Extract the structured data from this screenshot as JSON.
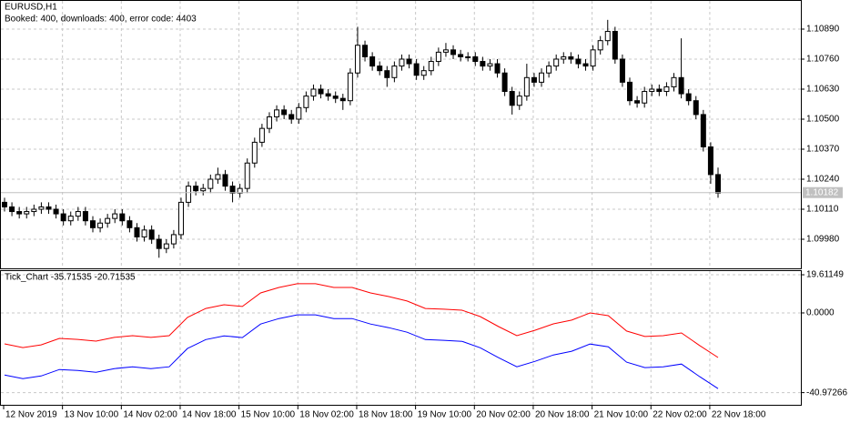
{
  "chart_data": [
    {
      "type": "candlestick",
      "title": "EURUSD,H1",
      "subtitle": "Booked: 400, downloads: 400, error code: 4403",
      "categories": [
        "12 Nov 2019",
        null,
        null,
        null,
        null,
        null,
        null,
        null,
        "13 Nov 10:00",
        null,
        null,
        null,
        null,
        null,
        null,
        null,
        "14 Nov 02:00",
        null,
        null,
        null,
        null,
        null,
        null,
        null,
        "14 Nov 18:00",
        null,
        null,
        null,
        null,
        null,
        null,
        null,
        "15 Nov 10:00",
        null,
        null,
        null,
        null,
        null,
        null,
        null,
        "18 Nov 02:00",
        null,
        null,
        null,
        null,
        null,
        null,
        null,
        "18 Nov 18:00",
        null,
        null,
        null,
        null,
        null,
        null,
        null,
        "19 Nov 10:00",
        null,
        null,
        null,
        null,
        null,
        null,
        null,
        "20 Nov 02:00",
        null,
        null,
        null,
        null,
        null,
        null,
        null,
        "20 Nov 18:00",
        null,
        null,
        null,
        null,
        null,
        null,
        null,
        "21 Nov 10:00",
        null,
        null,
        null,
        null,
        null,
        null,
        null,
        "22 Nov 02:00",
        null,
        null,
        null,
        null,
        null,
        null,
        null,
        "22 Nov 18:00",
        null
      ],
      "open": [
        1.1014,
        1.1012,
        1.101,
        1.1009,
        1.101,
        1.1011,
        1.1012,
        1.1011,
        1.1009,
        1.1006,
        1.1008,
        1.101,
        1.1006,
        1.1003,
        1.1005,
        1.1007,
        1.1009,
        1.1006,
        1.1003,
        1.0999,
        1.1002,
        1.0998,
        1.0994,
        1.0996,
        1.1,
        1.1014,
        1.1021,
        1.1019,
        1.102,
        1.1024,
        1.1026,
        1.1021,
        1.1018,
        1.102,
        1.1031,
        1.104,
        1.1046,
        1.1051,
        1.1054,
        1.1052,
        1.105,
        1.1055,
        1.106,
        1.1063,
        1.1061,
        1.106,
        1.1059,
        1.1058,
        1.107,
        1.1082,
        1.1077,
        1.1073,
        1.1071,
        1.1068,
        1.1073,
        1.1076,
        1.1074,
        1.1069,
        1.1071,
        1.1075,
        1.1079,
        1.108,
        1.1078,
        1.1077,
        1.1077,
        1.1075,
        1.1073,
        1.1074,
        1.107,
        1.1062,
        1.1056,
        1.106,
        1.1068,
        1.1066,
        1.107,
        1.1073,
        1.1076,
        1.1077,
        1.1076,
        1.1074,
        1.1073,
        1.108,
        1.1084,
        1.1088,
        1.1076,
        1.1066,
        1.1058,
        1.1057,
        1.1062,
        1.1063,
        1.1062,
        1.1064,
        1.1068,
        1.1061,
        1.1058,
        1.1052,
        1.1038,
        1.1026
      ],
      "high": [
        1.1016,
        1.1014,
        1.1012,
        1.1012,
        1.1013,
        1.1014,
        1.1014,
        1.1013,
        1.1011,
        1.101,
        1.1012,
        1.1012,
        1.1008,
        1.1007,
        1.1009,
        1.1011,
        1.1011,
        1.1008,
        1.1005,
        1.1004,
        1.1004,
        1.1,
        1.0998,
        1.1002,
        1.1016,
        1.1023,
        1.1023,
        1.1022,
        1.1026,
        1.1029,
        1.1028,
        1.1023,
        1.1022,
        1.1033,
        1.1042,
        1.1048,
        1.1053,
        1.1056,
        1.1056,
        1.1054,
        1.1057,
        1.1062,
        1.1065,
        1.1065,
        1.1063,
        1.1062,
        1.1061,
        1.1072,
        1.109,
        1.1084,
        1.1079,
        1.1075,
        1.1073,
        1.1075,
        1.1078,
        1.1078,
        1.1076,
        1.1073,
        1.1077,
        1.1081,
        1.1083,
        1.1082,
        1.108,
        1.1079,
        1.1079,
        1.1077,
        1.1076,
        1.1076,
        1.1072,
        1.1064,
        1.1062,
        1.1074,
        1.107,
        1.1072,
        1.1075,
        1.1078,
        1.1079,
        1.1079,
        1.1078,
        1.1076,
        1.1082,
        1.1086,
        1.1093,
        1.109,
        1.1078,
        1.1068,
        1.106,
        1.1064,
        1.1065,
        1.1065,
        1.1066,
        1.107,
        1.1085,
        1.1063,
        1.106,
        1.1054,
        1.104,
        1.1029
      ],
      "low": [
        1.101,
        1.1008,
        1.1007,
        1.1007,
        1.1008,
        1.1009,
        1.1009,
        1.1007,
        1.1004,
        1.1004,
        1.1006,
        1.1004,
        1.1001,
        1.1001,
        1.1003,
        1.1005,
        1.1004,
        1.1001,
        1.0997,
        1.0997,
        1.0996,
        1.099,
        1.0992,
        1.0994,
        1.0998,
        1.1012,
        1.1017,
        1.1017,
        1.1018,
        1.1022,
        1.1019,
        1.1014,
        1.1016,
        1.1018,
        1.1029,
        1.1038,
        1.1044,
        1.1049,
        1.105,
        1.1048,
        1.1048,
        1.1053,
        1.1058,
        1.1059,
        1.1058,
        1.1057,
        1.1054,
        1.1056,
        1.1068,
        1.1075,
        1.1071,
        1.1069,
        1.1064,
        1.1066,
        1.1071,
        1.1072,
        1.1067,
        1.1067,
        1.1069,
        1.1073,
        1.1077,
        1.1076,
        1.1075,
        1.1075,
        1.1073,
        1.1071,
        1.1071,
        1.1068,
        1.106,
        1.1052,
        1.1054,
        1.1058,
        1.1064,
        1.1064,
        1.1068,
        1.1071,
        1.1074,
        1.1074,
        1.1072,
        1.1071,
        1.1071,
        1.1078,
        1.1082,
        1.1074,
        1.1064,
        1.1056,
        1.1055,
        1.1055,
        1.106,
        1.106,
        1.106,
        1.1062,
        1.1059,
        1.1056,
        1.105,
        1.1036,
        1.1022,
        1.1016
      ],
      "close": [
        1.1012,
        1.101,
        1.1009,
        1.101,
        1.1011,
        1.1012,
        1.1011,
        1.1009,
        1.1006,
        1.1008,
        1.101,
        1.1006,
        1.1003,
        1.1005,
        1.1007,
        1.1009,
        1.1006,
        1.1003,
        1.0999,
        1.1002,
        1.0998,
        1.0994,
        1.0996,
        1.1,
        1.1014,
        1.1021,
        1.1019,
        1.102,
        1.1024,
        1.1026,
        1.1021,
        1.1018,
        1.102,
        1.1031,
        1.104,
        1.1046,
        1.1051,
        1.1054,
        1.1052,
        1.105,
        1.1055,
        1.106,
        1.1063,
        1.1061,
        1.106,
        1.1059,
        1.1058,
        1.107,
        1.1082,
        1.1077,
        1.1073,
        1.1071,
        1.1068,
        1.1073,
        1.1076,
        1.1074,
        1.1069,
        1.1071,
        1.1075,
        1.1079,
        1.108,
        1.1078,
        1.1077,
        1.1077,
        1.1075,
        1.1073,
        1.1074,
        1.107,
        1.1062,
        1.1056,
        1.106,
        1.1068,
        1.1066,
        1.107,
        1.1073,
        1.1076,
        1.1077,
        1.1076,
        1.1074,
        1.1073,
        1.108,
        1.1084,
        1.1088,
        1.1076,
        1.1066,
        1.1058,
        1.1057,
        1.1062,
        1.1063,
        1.1062,
        1.1064,
        1.1068,
        1.1061,
        1.1058,
        1.1052,
        1.1038,
        1.1026,
        1.1018
      ],
      "current_price": 1.10182,
      "ylim": [
        1.09854,
        1.11016
      ],
      "yticks": [
        {
          "value": 1.1089,
          "label": "1.10890"
        },
        {
          "value": 1.1076,
          "label": "1.10760"
        },
        {
          "value": 1.1063,
          "label": "1.10630"
        },
        {
          "value": 1.105,
          "label": "1.10500"
        },
        {
          "value": 1.1037,
          "label": "1.10370"
        },
        {
          "value": 1.1024,
          "label": "1.10240"
        },
        {
          "value": 1.1011,
          "label": "1.10110"
        },
        {
          "value": 1.0998,
          "label": "1.09980"
        }
      ],
      "grid": true
    },
    {
      "type": "line",
      "title": "Tick_Chart -35.71535 -20.71535",
      "series": [
        {
          "color": "#ff0000",
          "values": [
            -15.9,
            -17.8,
            -16.4,
            -13.1,
            -13.6,
            -14.5,
            -12.6,
            -11.7,
            -12.6,
            -11.7,
            -2.3,
            2.3,
            4.2,
            3.3,
            10.3,
            13.1,
            15,
            15,
            13.1,
            13.1,
            10.3,
            8.4,
            6.1,
            2.3,
            1.9,
            1.4,
            -1.9,
            -7,
            -11.7,
            -8.9,
            -5.6,
            -3.7,
            0,
            -1.4,
            -9.3,
            -12.1,
            -11.7,
            -10.3,
            -16.8,
            -22.9
          ]
        },
        {
          "color": "#0000ff",
          "values": [
            -31.9,
            -33.8,
            -32.4,
            -29.1,
            -29.6,
            -30.5,
            -28.6,
            -27.7,
            -28.6,
            -27.7,
            -18.3,
            -13.7,
            -11.8,
            -12.7,
            -5.7,
            -2.9,
            -1,
            -1,
            -2.9,
            -2.9,
            -5.7,
            -7.6,
            -9.9,
            -13.7,
            -14.1,
            -14.6,
            -17.9,
            -23,
            -27.7,
            -24.9,
            -21.6,
            -19.7,
            -16,
            -17.4,
            -25.3,
            -28.1,
            -27.7,
            -26.3,
            -32.8,
            -38.9
          ]
        }
      ],
      "ylim": [
        -47.7,
        21.5
      ],
      "yticks": [
        19.61149,
        {
          "value": 0,
          "label": "0.0000"
        },
        -40.97266
      ],
      "grid": true
    }
  ]
}
